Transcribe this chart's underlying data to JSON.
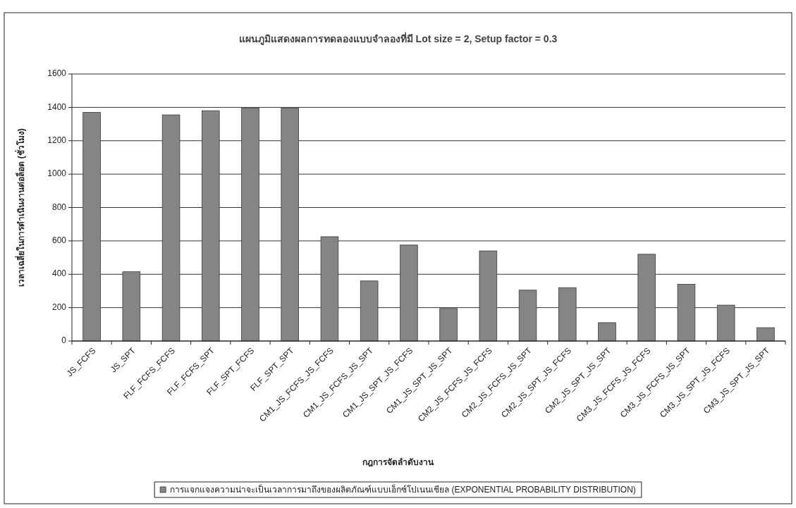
{
  "chart_data": {
    "type": "bar",
    "title": "แผนภูมิแสดงผลการทดลองแบบจำลองที่มี Lot size = 2, Setup factor = 0.3",
    "xlabel": "กฎการจัดลำดับงาน",
    "ylabel": "เวลาเฉลี่ยในการดำเนินงานต่อล็อต (ชั่วโมง)",
    "categories": [
      "JS_FCFS",
      "JS_SPT",
      "FLF_FCFS_FCFS",
      "FLF_FCFS_SPT",
      "FLF_SPT_FCFS",
      "FLF_SPT_SPT",
      "CM1_JS_FCFS_JS_FCFS",
      "CM1_JS_FCFS_JS_SPT",
      "CM1_JS_SPT_JS_FCFS",
      "CM1_JS_SPT_JS_SPT",
      "CM2_JS_FCFS_JS_FCFS",
      "CM2_JS_FCFS_JS_SPT",
      "CM2_JS_SPT_JS_FCFS",
      "CM2_JS_SPT_JS_SPT",
      "CM3_JS_FCFS_JS_FCFS",
      "CM3_JS_FCFS_JS_SPT",
      "CM3_JS_SPT_JS_FCFS",
      "CM3_JS_SPT_JS_SPT"
    ],
    "series": [
      {
        "name": "การแจกแจงความน่าจะเป็นเวลาการมาถึงของผลิตภัณฑ์แบบเอ็กซ์โปเนนเชียล (EXPONENTIAL PROBABILITY DISTRIBUTION)",
        "color": "#858585",
        "values": [
          1370,
          415,
          1355,
          1380,
          1395,
          1395,
          625,
          360,
          575,
          195,
          540,
          305,
          320,
          110,
          520,
          340,
          215,
          80
        ]
      }
    ],
    "ylim": [
      0,
      1600
    ],
    "yticks": [
      0,
      200,
      400,
      600,
      800,
      1000,
      1200,
      1400,
      1600
    ],
    "grid": "y",
    "legend": "bottom"
  }
}
